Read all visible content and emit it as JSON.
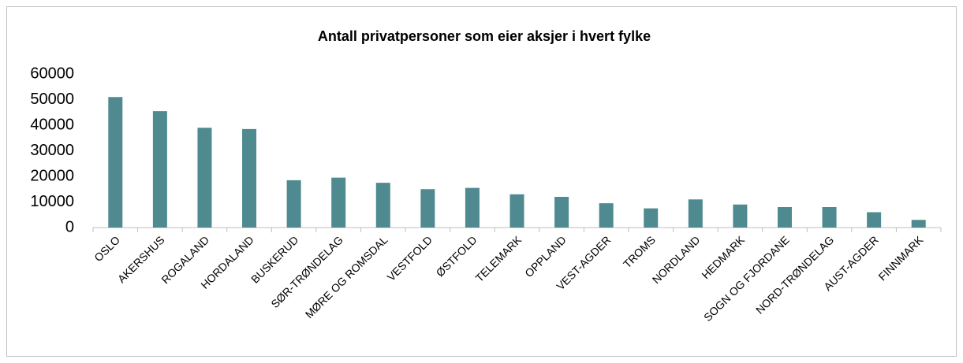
{
  "chart_data": {
    "type": "bar",
    "title": "Antall privatpersoner som eier aksjer i hvert fylke",
    "categories": [
      "OSLO",
      "AKERSHUS",
      "ROGALAND",
      "HORDALAND",
      "BUSKERUD",
      "SØR-TRØNDELAG",
      "MØRE OG ROMSDAL",
      "VESTFOLD",
      "ØSTFOLD",
      "TELEMARK",
      "OPPLAND",
      "VEST-AGDER",
      "TROMS",
      "NORDLAND",
      "HEDMARK",
      "SOGN OG FJORDANE",
      "NORD-TRØNDELAG",
      "AUST-AGDER",
      "FINNMARK"
    ],
    "values": [
      51000,
      45500,
      39000,
      38500,
      18500,
      19500,
      17500,
      15000,
      15500,
      13000,
      12000,
      9500,
      7500,
      11000,
      9000,
      8000,
      8000,
      6000,
      3000
    ],
    "color": "#4e8a8f",
    "ylim": [
      0,
      60000
    ],
    "yticks": [
      0,
      10000,
      20000,
      30000,
      40000,
      50000,
      60000
    ],
    "grid": false
  }
}
